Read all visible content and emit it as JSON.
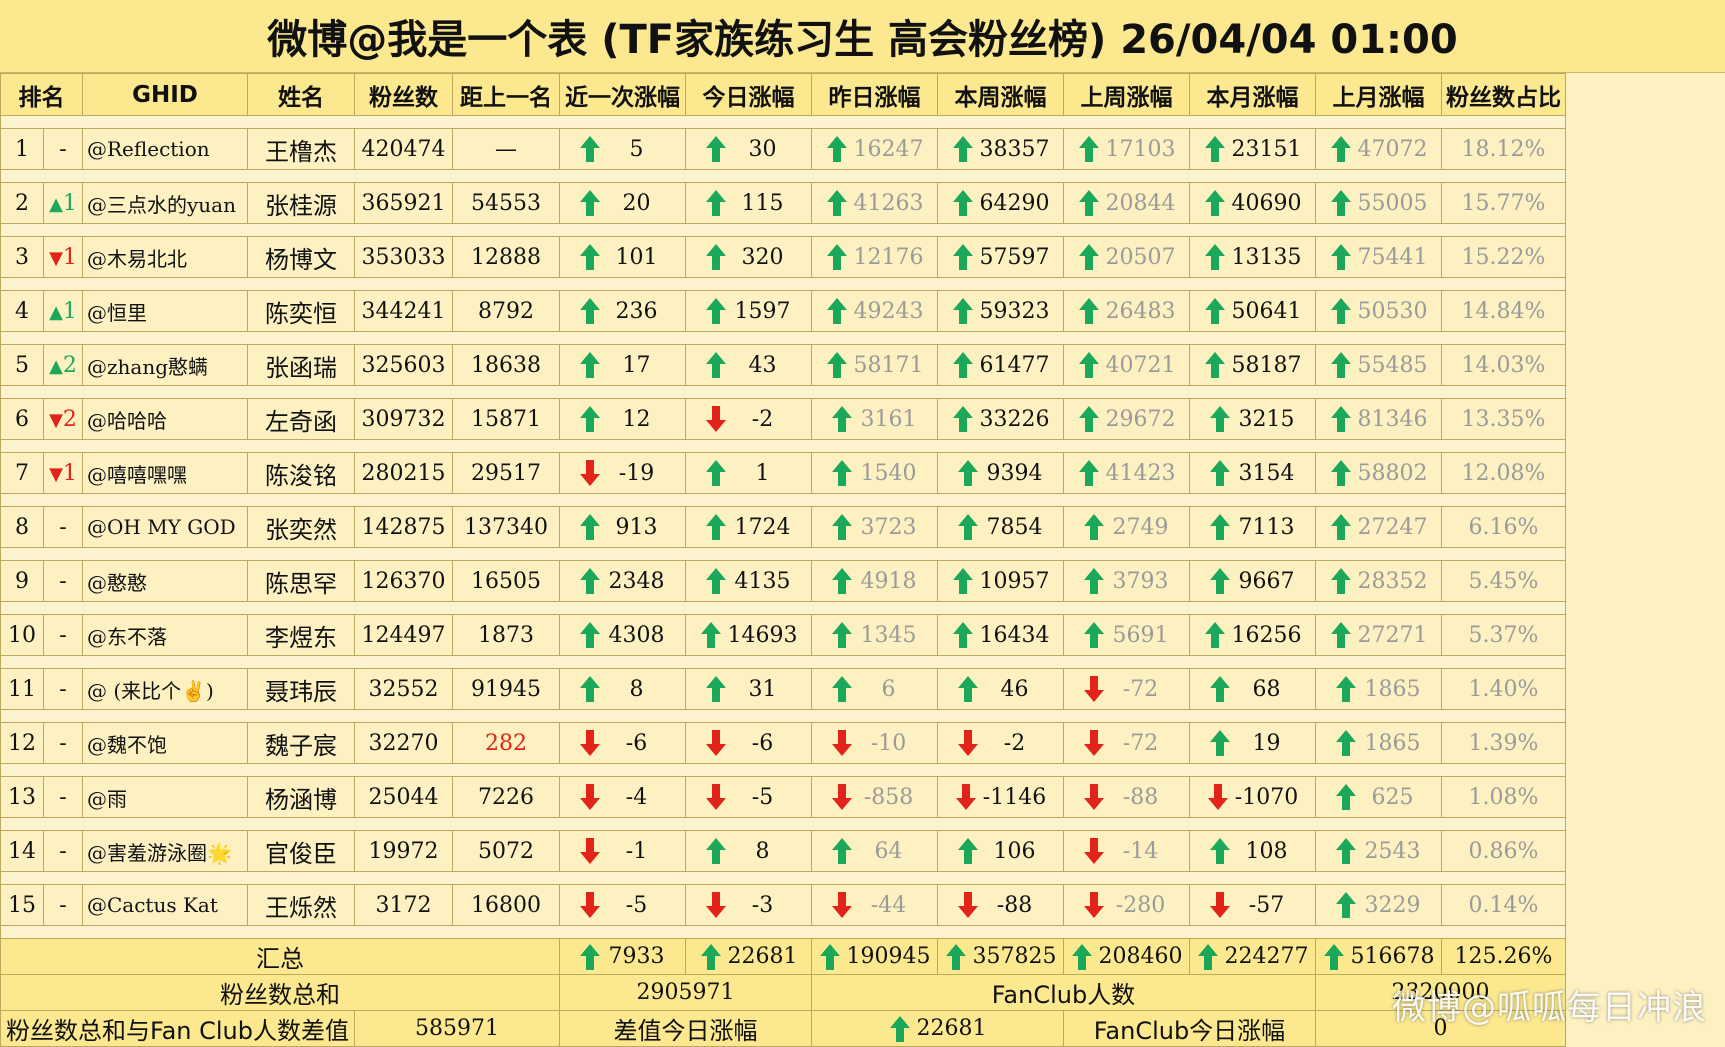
{
  "title": "微博@我是一个表 (TF家族练习生 高会粉丝榜)  26/04/04 01:00",
  "headers": [
    "排名",
    "GHID",
    "姓名",
    "粉丝数",
    "距上一名",
    "近一次涨幅",
    "今日涨幅",
    "昨日涨幅",
    "本周涨幅",
    "上周涨幅",
    "本月涨幅",
    "上月涨幅",
    "粉丝数占比"
  ],
  "rows": [
    {
      "rank": "1",
      "change": "-",
      "dir": "",
      "ghid": "@Reflection",
      "name": "王橹杰",
      "fans": "420474",
      "gap": "—",
      "gap_red": false,
      "recent": "5",
      "recent_up": true,
      "today": "30",
      "today_up": true,
      "yesterday": "16247",
      "yesterday_up": true,
      "thisweek": "38357",
      "thisweek_up": true,
      "lastweek": "17103",
      "lastweek_up": true,
      "thismonth": "23151",
      "thismonth_up": true,
      "lastmonth": "47072",
      "lastmonth_up": true,
      "share": "18.12%"
    },
    {
      "rank": "2",
      "change": "1",
      "dir": "up",
      "ghid": "@三点水的yuan",
      "name": "张桂源",
      "fans": "365921",
      "gap": "54553",
      "gap_red": false,
      "recent": "20",
      "recent_up": true,
      "today": "115",
      "today_up": true,
      "yesterday": "41263",
      "yesterday_up": true,
      "thisweek": "64290",
      "thisweek_up": true,
      "lastweek": "20844",
      "lastweek_up": true,
      "thismonth": "40690",
      "thismonth_up": true,
      "lastmonth": "55005",
      "lastmonth_up": true,
      "share": "15.77%"
    },
    {
      "rank": "3",
      "change": "1",
      "dir": "down",
      "ghid": "@木易北北",
      "name": "杨博文",
      "fans": "353033",
      "gap": "12888",
      "gap_red": false,
      "recent": "101",
      "recent_up": true,
      "today": "320",
      "today_up": true,
      "yesterday": "12176",
      "yesterday_up": true,
      "thisweek": "57597",
      "thisweek_up": true,
      "lastweek": "20507",
      "lastweek_up": true,
      "thismonth": "13135",
      "thismonth_up": true,
      "lastmonth": "75441",
      "lastmonth_up": true,
      "share": "15.22%"
    },
    {
      "rank": "4",
      "change": "1",
      "dir": "up",
      "ghid": "@恒里",
      "name": "陈奕恒",
      "fans": "344241",
      "gap": "8792",
      "gap_red": false,
      "recent": "236",
      "recent_up": true,
      "today": "1597",
      "today_up": true,
      "yesterday": "49243",
      "yesterday_up": true,
      "thisweek": "59323",
      "thisweek_up": true,
      "lastweek": "26483",
      "lastweek_up": true,
      "thismonth": "50641",
      "thismonth_up": true,
      "lastmonth": "50530",
      "lastmonth_up": true,
      "share": "14.84%"
    },
    {
      "rank": "5",
      "change": "2",
      "dir": "up",
      "ghid": "@zhang憨螨",
      "name": "张函瑞",
      "fans": "325603",
      "gap": "18638",
      "gap_red": false,
      "recent": "17",
      "recent_up": true,
      "today": "43",
      "today_up": true,
      "yesterday": "58171",
      "yesterday_up": true,
      "thisweek": "61477",
      "thisweek_up": true,
      "lastweek": "40721",
      "lastweek_up": true,
      "thismonth": "58187",
      "thismonth_up": true,
      "lastmonth": "55485",
      "lastmonth_up": true,
      "share": "14.03%"
    },
    {
      "rank": "6",
      "change": "2",
      "dir": "down",
      "ghid": "@哈哈哈",
      "name": "左奇函",
      "fans": "309732",
      "gap": "15871",
      "gap_red": false,
      "recent": "12",
      "recent_up": true,
      "today": "-2",
      "today_up": false,
      "yesterday": "3161",
      "yesterday_up": true,
      "thisweek": "33226",
      "thisweek_up": true,
      "lastweek": "29672",
      "lastweek_up": true,
      "thismonth": "3215",
      "thismonth_up": true,
      "lastmonth": "81346",
      "lastmonth_up": true,
      "share": "13.35%"
    },
    {
      "rank": "7",
      "change": "1",
      "dir": "down",
      "ghid": "@嘻嘻嘿嘿",
      "name": "陈浚铭",
      "fans": "280215",
      "gap": "29517",
      "gap_red": false,
      "recent": "-19",
      "recent_up": false,
      "today": "1",
      "today_up": true,
      "yesterday": "1540",
      "yesterday_up": true,
      "thisweek": "9394",
      "thisweek_up": true,
      "lastweek": "41423",
      "lastweek_up": true,
      "thismonth": "3154",
      "thismonth_up": true,
      "lastmonth": "58802",
      "lastmonth_up": true,
      "share": "12.08%"
    },
    {
      "rank": "8",
      "change": "-",
      "dir": "",
      "ghid": "@OH MY GOD",
      "name": "张奕然",
      "fans": "142875",
      "gap": "137340",
      "gap_red": false,
      "recent": "913",
      "recent_up": true,
      "today": "1724",
      "today_up": true,
      "yesterday": "3723",
      "yesterday_up": true,
      "thisweek": "7854",
      "thisweek_up": true,
      "lastweek": "2749",
      "lastweek_up": true,
      "thismonth": "7113",
      "thismonth_up": true,
      "lastmonth": "27247",
      "lastmonth_up": true,
      "share": "6.16%"
    },
    {
      "rank": "9",
      "change": "-",
      "dir": "",
      "ghid": "@憨憨",
      "name": "陈思罕",
      "fans": "126370",
      "gap": "16505",
      "gap_red": false,
      "recent": "2348",
      "recent_up": true,
      "today": "4135",
      "today_up": true,
      "yesterday": "4918",
      "yesterday_up": true,
      "thisweek": "10957",
      "thisweek_up": true,
      "lastweek": "3793",
      "lastweek_up": true,
      "thismonth": "9667",
      "thismonth_up": true,
      "lastmonth": "28352",
      "lastmonth_up": true,
      "share": "5.45%"
    },
    {
      "rank": "10",
      "change": "-",
      "dir": "",
      "ghid": "@东不落",
      "name": "李煜东",
      "fans": "124497",
      "gap": "1873",
      "gap_red": false,
      "recent": "4308",
      "recent_up": true,
      "today": "14693",
      "today_up": true,
      "yesterday": "1345",
      "yesterday_up": true,
      "thisweek": "16434",
      "thisweek_up": true,
      "lastweek": "5691",
      "lastweek_up": true,
      "thismonth": "16256",
      "thismonth_up": true,
      "lastmonth": "27271",
      "lastmonth_up": true,
      "share": "5.37%"
    },
    {
      "rank": "11",
      "change": "-",
      "dir": "",
      "ghid": "@ (来比个✌)",
      "name": "聂玮辰",
      "fans": "32552",
      "gap": "91945",
      "gap_red": false,
      "recent": "8",
      "recent_up": true,
      "today": "31",
      "today_up": true,
      "yesterday": "6",
      "yesterday_up": true,
      "thisweek": "46",
      "thisweek_up": true,
      "lastweek": "-72",
      "lastweek_up": false,
      "thismonth": "68",
      "thismonth_up": true,
      "lastmonth": "1865",
      "lastmonth_up": true,
      "share": "1.40%"
    },
    {
      "rank": "12",
      "change": "-",
      "dir": "",
      "ghid": "@魏不饱",
      "name": "魏子宸",
      "fans": "32270",
      "gap": "282",
      "gap_red": true,
      "recent": "-6",
      "recent_up": false,
      "today": "-6",
      "today_up": false,
      "yesterday": "-10",
      "yesterday_up": false,
      "thisweek": "-2",
      "thisweek_up": false,
      "lastweek": "-72",
      "lastweek_up": false,
      "thismonth": "19",
      "thismonth_up": true,
      "lastmonth": "1865",
      "lastmonth_up": true,
      "share": "1.39%"
    },
    {
      "rank": "13",
      "change": "-",
      "dir": "",
      "ghid": "@雨",
      "name": "杨涵博",
      "fans": "25044",
      "gap": "7226",
      "gap_red": false,
      "recent": "-4",
      "recent_up": false,
      "today": "-5",
      "today_up": false,
      "yesterday": "-858",
      "yesterday_up": false,
      "thisweek": "-1146",
      "thisweek_up": false,
      "lastweek": "-88",
      "lastweek_up": false,
      "thismonth": "-1070",
      "thismonth_up": false,
      "lastmonth": "625",
      "lastmonth_up": true,
      "share": "1.08%"
    },
    {
      "rank": "14",
      "change": "-",
      "dir": "",
      "ghid": "@害羞游泳圈🌟",
      "name": "官俊臣",
      "fans": "19972",
      "gap": "5072",
      "gap_red": false,
      "recent": "-1",
      "recent_up": false,
      "today": "8",
      "today_up": true,
      "yesterday": "64",
      "yesterday_up": true,
      "thisweek": "106",
      "thisweek_up": true,
      "lastweek": "-14",
      "lastweek_up": false,
      "thismonth": "108",
      "thismonth_up": true,
      "lastmonth": "2543",
      "lastmonth_up": true,
      "share": "0.86%"
    },
    {
      "rank": "15",
      "change": "-",
      "dir": "",
      "ghid": "@Cactus Kat",
      "name": "王烁然",
      "fans": "3172",
      "gap": "16800",
      "gap_red": false,
      "recent": "-5",
      "recent_up": false,
      "today": "-3",
      "today_up": false,
      "yesterday": "-44",
      "yesterday_up": false,
      "thisweek": "-88",
      "thisweek_up": false,
      "lastweek": "-280",
      "lastweek_up": false,
      "thismonth": "-57",
      "thismonth_up": false,
      "lastmonth": "3229",
      "lastmonth_up": true,
      "share": "0.14%"
    }
  ],
  "summary": {
    "label": "汇总",
    "recent": "7933",
    "today": "22681",
    "yesterday": "190945",
    "thisweek": "357825",
    "lastweek": "208460",
    "thismonth": "224277",
    "lastmonth": "516678",
    "share": "125.26%"
  },
  "footer": {
    "total_label": "粉丝数总和",
    "total_value": "2905971",
    "fanclub_label": "FanClub人数",
    "fanclub_value": "2320000",
    "diff_label": "粉丝数总和与Fan Club人数差值",
    "diff_value": "585971",
    "diff_today_label": "差值今日涨幅",
    "diff_today_value": "22681",
    "fanclub_today_label": "FanClub今日涨幅",
    "fanclub_today_value": "0"
  },
  "watermark": "微博@呱呱每日冲浪",
  "colors": {
    "up": "#1ba85a",
    "down": "#e2231a",
    "header_bg": "#fbe88f",
    "row_bg": "#fdf1c2"
  }
}
